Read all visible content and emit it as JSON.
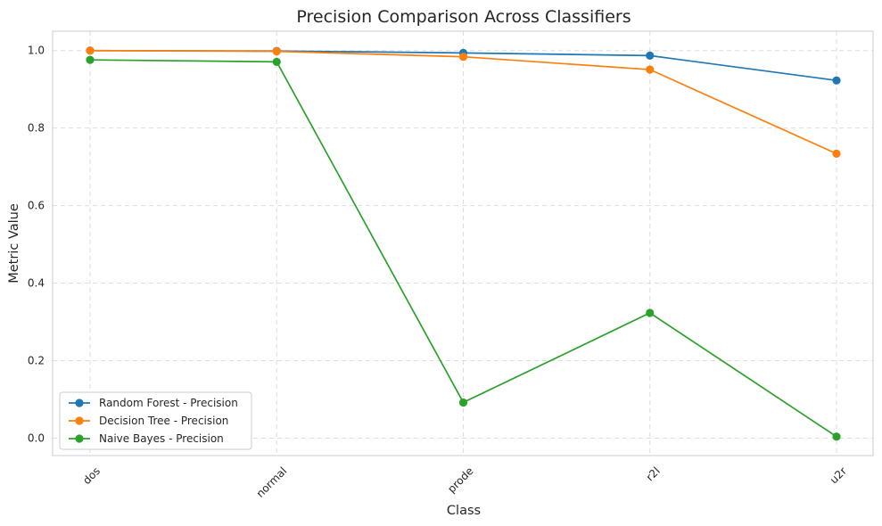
{
  "chart_data": {
    "type": "line",
    "title": "Precision Comparison Across Classifiers",
    "xlabel": "Class",
    "ylabel": "Metric Value",
    "categories": [
      "dos",
      "normal",
      "prode",
      "r2l",
      "u2r"
    ],
    "ylim": [
      -0.045,
      1.05
    ],
    "yticks": [
      "0.0",
      "0.2",
      "0.4",
      "0.6",
      "0.8",
      "1.0"
    ],
    "grid": true,
    "legend_position": "lower-left",
    "series": [
      {
        "name": "Random Forest - Precision",
        "color": "#1f77b4",
        "values": [
          1.0,
          0.999,
          0.994,
          0.987,
          0.923
        ]
      },
      {
        "name": "Decision Tree - Precision",
        "color": "#ff7f0e",
        "values": [
          1.0,
          0.998,
          0.984,
          0.951,
          0.734
        ]
      },
      {
        "name": "Naive Bayes - Precision",
        "color": "#2ca02c",
        "values": [
          0.976,
          0.971,
          0.092,
          0.323,
          0.004
        ]
      }
    ]
  }
}
